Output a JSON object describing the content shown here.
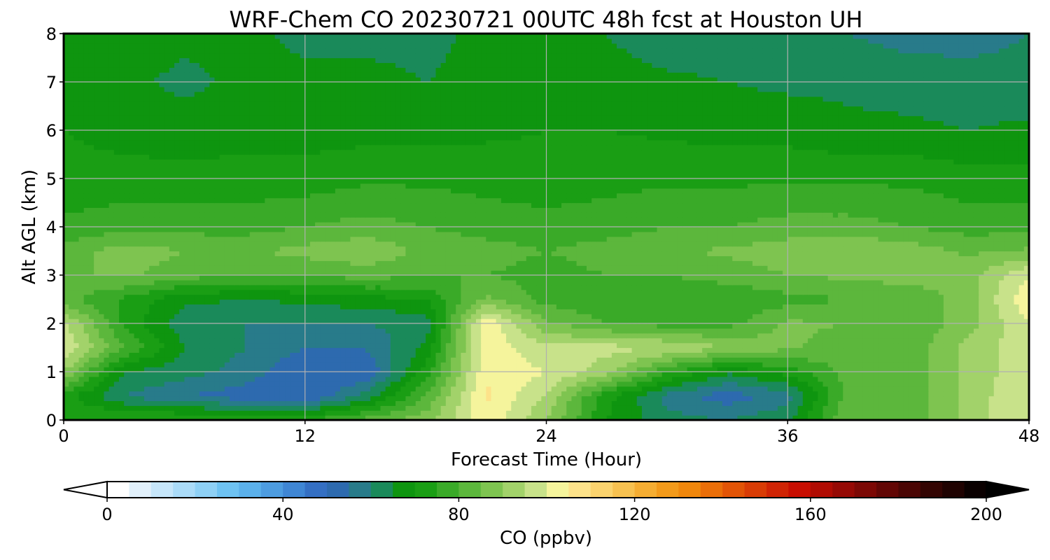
{
  "chart_data": {
    "type": "heatmap",
    "subtype": "filled-contour",
    "title": "WRF-Chem CO  20230721 00UTC 48h fcst at Houston UH",
    "xlabel": "Forecast Time (Hour)",
    "ylabel": "Alt AGL (km)",
    "xlim": [
      0,
      48
    ],
    "ylim": [
      0,
      8
    ],
    "xticks": [
      0,
      12,
      24,
      36,
      48
    ],
    "yticks": [
      0,
      1,
      2,
      3,
      4,
      5,
      6,
      7,
      8
    ],
    "grid": true,
    "x": [
      0,
      3,
      6,
      9,
      12,
      15,
      18,
      21,
      24,
      27,
      30,
      33,
      36,
      39,
      42,
      45,
      48
    ],
    "y": [
      0,
      0.5,
      1,
      1.5,
      2,
      2.5,
      3,
      3.5,
      4,
      5,
      6,
      7,
      8
    ],
    "z": [
      [
        75,
        76,
        76,
        76,
        75,
        82,
        88,
        104,
        90,
        70,
        62,
        60,
        64,
        85,
        82,
        92,
        100
      ],
      [
        72,
        60,
        55,
        52,
        50,
        62,
        80,
        106,
        94,
        72,
        58,
        52,
        58,
        82,
        82,
        92,
        100
      ],
      [
        90,
        65,
        62,
        58,
        50,
        50,
        72,
        104,
        100,
        92,
        76,
        66,
        72,
        82,
        82,
        92,
        98
      ],
      [
        100,
        80,
        65,
        60,
        55,
        55,
        66,
        104,
        96,
        97,
        95,
        90,
        86,
        82,
        82,
        92,
        98
      ],
      [
        96,
        74,
        62,
        60,
        60,
        60,
        62,
        104,
        86,
        80,
        78,
        78,
        86,
        85,
        80,
        88,
        100
      ],
      [
        82,
        74,
        66,
        65,
        66,
        68,
        70,
        86,
        78,
        76,
        76,
        76,
        78,
        80,
        80,
        88,
        104
      ],
      [
        84,
        86,
        82,
        80,
        80,
        82,
        80,
        80,
        78,
        80,
        80,
        82,
        85,
        86,
        88,
        88,
        100
      ],
      [
        82,
        88,
        85,
        84,
        87,
        89,
        84,
        82,
        80,
        82,
        84,
        86,
        88,
        90,
        88,
        84,
        86
      ],
      [
        76,
        78,
        78,
        78,
        80,
        82,
        80,
        78,
        77,
        78,
        80,
        80,
        82,
        82,
        80,
        78,
        78
      ],
      [
        72,
        72,
        72,
        72,
        72,
        74,
        74,
        73,
        72,
        73,
        74,
        74,
        74,
        74,
        74,
        72,
        72
      ],
      [
        70,
        68,
        67,
        68,
        68,
        68,
        68,
        69,
        70,
        70,
        69,
        68,
        68,
        66,
        66,
        65,
        66
      ],
      [
        69,
        66,
        64,
        66,
        66,
        66,
        65,
        66,
        68,
        67,
        66,
        65,
        64,
        64,
        63,
        62,
        62
      ],
      [
        68,
        67,
        66,
        66,
        64,
        64,
        64,
        66,
        66,
        65,
        62,
        62,
        62,
        60,
        58,
        58,
        60
      ]
    ],
    "colorbar": {
      "label": "CO  (ppbv)",
      "min": 0,
      "max": 200,
      "step": 5,
      "ticks": [
        0,
        40,
        80,
        120,
        160,
        200
      ],
      "extend": "both",
      "colors": [
        "#ffffff",
        "#e1f0fb",
        "#c6e6fa",
        "#aadbf8",
        "#8ed0f5",
        "#6ec2f2",
        "#5bb0ea",
        "#4d9ce0",
        "#3f86d4",
        "#346fc3",
        "#2d6aaf",
        "#287b8a",
        "#1a8a5a",
        "#0e950f",
        "#1a9e14",
        "#3aaa28",
        "#5cb73c",
        "#7ec450",
        "#a2d26a",
        "#c8e28a",
        "#f5f49c",
        "#fde28a",
        "#fbd36e",
        "#f7c150",
        "#f5ad32",
        "#f39a1a",
        "#f0870c",
        "#ea6e08",
        "#e25406",
        "#d93c05",
        "#d02404",
        "#c80d00",
        "#b00b02",
        "#960904",
        "#7c0804",
        "#620604",
        "#4a0503",
        "#330402",
        "#1f0201",
        "#0a0000"
      ],
      "under_color": "#ffffff",
      "over_color": "#000000"
    }
  }
}
